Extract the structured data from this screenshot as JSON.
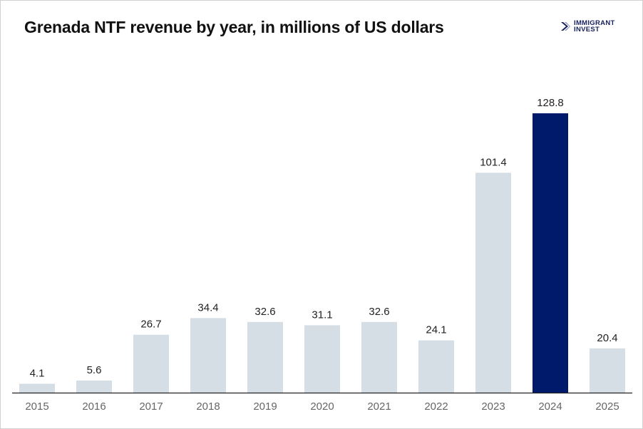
{
  "logo": {
    "line1": "IMMIGRANT",
    "line2": "INVEST"
  },
  "colors": {
    "bar_default": "#d5dee4",
    "bar_highlight": "#001a6b",
    "axis": "#222222",
    "brand": "#16205c"
  },
  "chart_data": {
    "type": "bar",
    "title": "Grenada NTF revenue by year, in millions of US dollars",
    "xlabel": "",
    "ylabel": "",
    "categories": [
      "2015",
      "2016",
      "2017",
      "2018",
      "2019",
      "2020",
      "2021",
      "2022",
      "2023",
      "2024",
      "2025"
    ],
    "values": [
      4.1,
      5.6,
      26.7,
      34.4,
      32.6,
      31.1,
      32.6,
      24.1,
      101.4,
      128.8,
      20.4
    ],
    "value_labels": [
      "4.1",
      "5.6",
      "26.7",
      "34.4",
      "32.6",
      "31.1",
      "32.6",
      "24.1",
      "101.4",
      "128.8",
      "20.4"
    ],
    "highlight_category": "2024",
    "ylim": [
      0,
      128.8
    ],
    "grid": false,
    "legend": "none"
  }
}
